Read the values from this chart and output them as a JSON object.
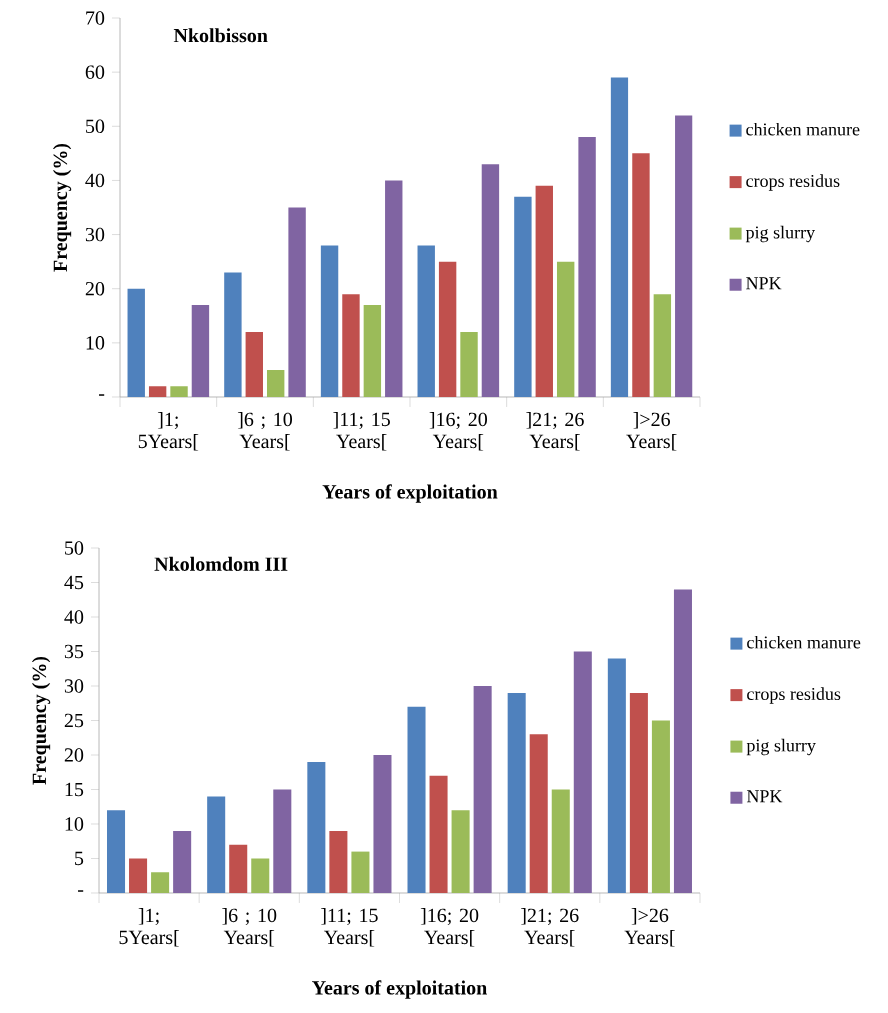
{
  "chart_data": [
    {
      "type": "bar",
      "title": "Nkolbisson",
      "xlabel": "Years of exploitation",
      "ylabel": "Frequency (%)",
      "categories": [
        "]1; 5Years[",
        "]6 ; 10 Years[",
        "]11; 15 Years[",
        "]16; 20 Years[",
        "]21; 26 Years[",
        "]>26 Years["
      ],
      "series": [
        {
          "name": "chicken manure",
          "color": "#4f81bd",
          "values": [
            20,
            23,
            28,
            28,
            37,
            59
          ]
        },
        {
          "name": "crops residus",
          "color": "#c0504d",
          "values": [
            2,
            12,
            19,
            25,
            39,
            45
          ]
        },
        {
          "name": "pig slurry",
          "color": "#9bbb59",
          "values": [
            2,
            5,
            17,
            12,
            25,
            19
          ]
        },
        {
          "name": "NPK",
          "color": "#8064a2",
          "values": [
            17,
            35,
            40,
            43,
            48,
            52
          ]
        }
      ],
      "ylim": [
        0,
        70
      ],
      "yticks": [
        {
          "value": 0,
          "label": "-"
        },
        10,
        20,
        30,
        40,
        50,
        60,
        70
      ],
      "legend": "right"
    },
    {
      "type": "bar",
      "title": "Nkolomdom III",
      "xlabel": "Years of exploitation",
      "ylabel": "Frequency (%)",
      "categories": [
        "]1; 5Years[",
        "]6 ; 10 Years[",
        "]11; 15 Years[",
        "]16; 20 Years[",
        "]21; 26 Years[",
        "]>26 Years["
      ],
      "series": [
        {
          "name": "chicken manure",
          "color": "#4f81bd",
          "values": [
            12,
            14,
            19,
            27,
            29,
            34
          ]
        },
        {
          "name": "crops residus",
          "color": "#c0504d",
          "values": [
            5,
            7,
            9,
            17,
            23,
            29
          ]
        },
        {
          "name": "pig slurry",
          "color": "#9bbb59",
          "values": [
            3,
            5,
            6,
            12,
            15,
            25
          ]
        },
        {
          "name": "NPK",
          "color": "#8064a2",
          "values": [
            9,
            15,
            20,
            30,
            35,
            44
          ]
        }
      ],
      "ylim": [
        0,
        50
      ],
      "yticks": [
        {
          "value": 0,
          "label": "-"
        },
        5,
        10,
        15,
        20,
        25,
        30,
        35,
        40,
        45,
        50
      ],
      "legend": "right"
    }
  ]
}
